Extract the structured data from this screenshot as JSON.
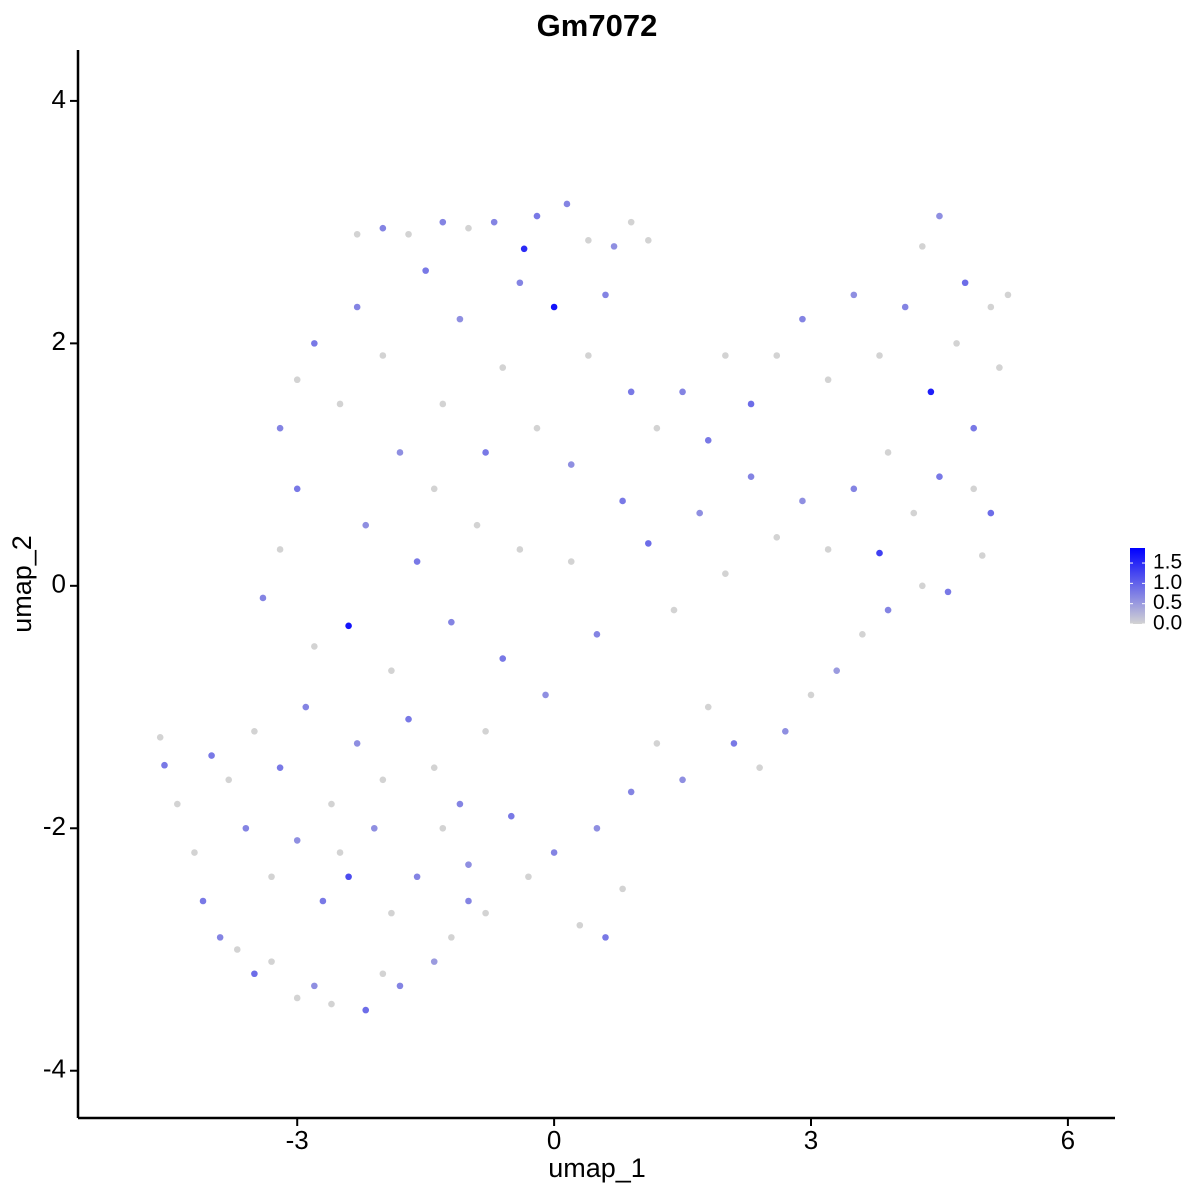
{
  "chart_data": {
    "type": "scatter",
    "title": "Gm7072",
    "x_label": "umap_1",
    "y_label": "umap_2",
    "xlim": [
      -5.56,
      6.55
    ],
    "ylim": [
      -4.39,
      4.42
    ],
    "xticks": [
      -3,
      0,
      3,
      6
    ],
    "yticks": [
      -4,
      -2,
      0,
      2,
      4
    ],
    "low_color": "#d3d3d3",
    "high_color": "#0000ff",
    "colorlim": [
      0,
      1.87
    ],
    "colorticks": [
      {
        "value": 0,
        "label": "0.0"
      },
      {
        "value": 0.5,
        "label": "0.5"
      },
      {
        "value": 1,
        "label": "1.0"
      },
      {
        "value": 1.5,
        "label": "1.5"
      }
    ],
    "x": [
      -4.6,
      -4.55,
      -4.4,
      -4.2,
      -4.1,
      -3.9,
      -3.7,
      -3.5,
      -3.3,
      -3.0,
      -2.8,
      -2.6,
      -2.2,
      -2.0,
      -1.8,
      -1.4,
      -1.2,
      -1.0,
      -4.0,
      -3.8,
      -3.6,
      -3.3,
      -3.0,
      -2.7,
      -2.5,
      -2.4,
      -2.1,
      -1.9,
      -1.6,
      -1.3,
      -1.0,
      -0.8,
      -3.5,
      -3.2,
      -2.9,
      -2.6,
      -2.3,
      -2.0,
      -1.7,
      -1.4,
      -1.1,
      -0.8,
      -0.5,
      -0.3,
      0,
      0.3,
      0.6,
      0.8,
      0.5,
      0.9,
      1.2,
      1.5,
      1.8,
      2.1,
      2.4,
      2.7,
      3.0,
      3.3,
      3.6,
      3.9,
      4.3,
      4.6,
      -3.4,
      -3.2,
      -3.0,
      -2.8,
      -2.4,
      -2.2,
      -1.9,
      -1.6,
      -1.4,
      -1.2,
      -0.9,
      -0.6,
      -0.4,
      -0.1,
      0.2,
      0.5,
      0.8,
      1.1,
      1.4,
      1.7,
      2.0,
      2.3,
      2.6,
      2.9,
      3.2,
      3.5,
      3.8,
      4.2,
      4.5,
      4.9,
      5.1,
      5.0,
      -3.2,
      -3.0,
      -2.8,
      -2.5,
      -2.3,
      -2.0,
      -1.8,
      -1.5,
      -1.3,
      -1.1,
      -0.8,
      -0.6,
      -0.4,
      -0.2,
      0,
      0.2,
      0.4,
      0.6,
      0.9,
      1.2,
      1.5,
      1.8,
      2.0,
      2.3,
      2.6,
      2.9,
      3.2,
      3.5,
      3.8,
      4.1,
      4.4,
      4.7,
      4.9,
      5.2,
      4.3,
      4.5,
      4.8,
      5.1,
      5.3,
      3.9,
      -2.3,
      -2.0,
      -1.7,
      -1.3,
      -1.0,
      -0.7,
      -0.35,
      -0.2,
      0.15,
      0.4,
      0.7,
      1.1,
      0.9
    ],
    "y": [
      -1.25,
      -1.48,
      -1.8,
      -2.2,
      -2.6,
      -2.9,
      -3.0,
      -3.2,
      -3.1,
      -3.4,
      -3.3,
      -3.45,
      -3.5,
      -3.2,
      -3.3,
      -3.1,
      -2.9,
      -2.6,
      -1.4,
      -1.6,
      -2.0,
      -2.4,
      -2.1,
      -2.6,
      -2.2,
      -2.4,
      -2.0,
      -2.7,
      -2.4,
      -2.0,
      -2.3,
      -2.7,
      -1.2,
      -1.5,
      -1.0,
      -1.8,
      -1.3,
      -1.6,
      -1.1,
      -1.5,
      -1.8,
      -1.2,
      -1.9,
      -2.4,
      -2.2,
      -2.8,
      -2.9,
      -2.5,
      -2.0,
      -1.7,
      -1.3,
      -1.6,
      -1.0,
      -1.3,
      -1.5,
      -1.2,
      -0.9,
      -0.7,
      -0.4,
      -0.2,
      0.0,
      -0.05,
      -0.1,
      0.3,
      0.8,
      -0.5,
      -0.33,
      0.5,
      -0.7,
      0.2,
      0.8,
      -0.3,
      0.5,
      -0.6,
      0.3,
      -0.9,
      0.2,
      -0.4,
      0.7,
      0.35,
      -0.2,
      0.6,
      0.1,
      0.9,
      0.4,
      0.7,
      0.3,
      0.8,
      0.27,
      0.6,
      0.9,
      0.8,
      0.6,
      0.25,
      1.3,
      1.7,
      2.0,
      1.5,
      2.3,
      1.9,
      1.1,
      2.6,
      1.5,
      2.2,
      1.1,
      1.8,
      2.5,
      1.3,
      2.3,
      1.0,
      1.9,
      2.4,
      1.6,
      1.3,
      1.6,
      1.2,
      1.9,
      1.5,
      1.9,
      2.2,
      1.7,
      2.4,
      1.9,
      2.3,
      1.6,
      2.0,
      1.3,
      1.8,
      2.8,
      3.05,
      2.5,
      2.3,
      2.4,
      1.1,
      2.9,
      2.95,
      2.9,
      3.0,
      2.95,
      3.0,
      2.78,
      3.05,
      3.15,
      2.85,
      2.8,
      2.85,
      3.0
    ],
    "values": [
      0,
      0.8,
      0,
      0,
      0.8,
      0.7,
      0,
      0.9,
      0,
      0,
      0.6,
      0,
      0.9,
      0,
      0.7,
      0.5,
      0,
      0.7,
      0.8,
      0,
      0.7,
      0,
      0.6,
      0.8,
      0,
      1.2,
      0.6,
      0,
      0.7,
      0,
      0.6,
      0,
      0,
      0.8,
      0.7,
      0,
      0.6,
      0,
      0.8,
      0,
      0.7,
      0,
      0.8,
      0,
      0.7,
      0,
      0.8,
      0,
      0.6,
      0.7,
      0,
      0.6,
      0,
      0.8,
      0,
      0.6,
      0,
      0.5,
      0,
      0.7,
      0,
      0.8,
      0.7,
      0,
      0.8,
      0,
      1.7,
      0.6,
      0,
      0.8,
      0,
      0.7,
      0,
      0.8,
      0,
      0.6,
      0,
      0.7,
      0.8,
      0.9,
      0,
      0.6,
      0,
      0.7,
      0,
      0.6,
      0,
      0.7,
      1.3,
      0,
      0.8,
      0,
      0.9,
      0,
      0.7,
      0,
      0.8,
      0,
      0.7,
      0,
      0.6,
      0.8,
      0,
      0.6,
      0.8,
      0,
      0.7,
      0,
      1.7,
      0.6,
      0,
      0.7,
      0.8,
      0,
      0.7,
      0.8,
      0,
      0.9,
      0,
      0.7,
      0,
      0.6,
      0,
      0.7,
      1.6,
      0,
      0.8,
      0,
      0,
      0.6,
      0.9,
      0,
      0,
      0,
      0,
      0.7,
      0,
      0.7,
      0,
      0.7,
      1.5,
      0.8,
      0.7,
      0,
      0.6,
      0,
      0
    ]
  }
}
